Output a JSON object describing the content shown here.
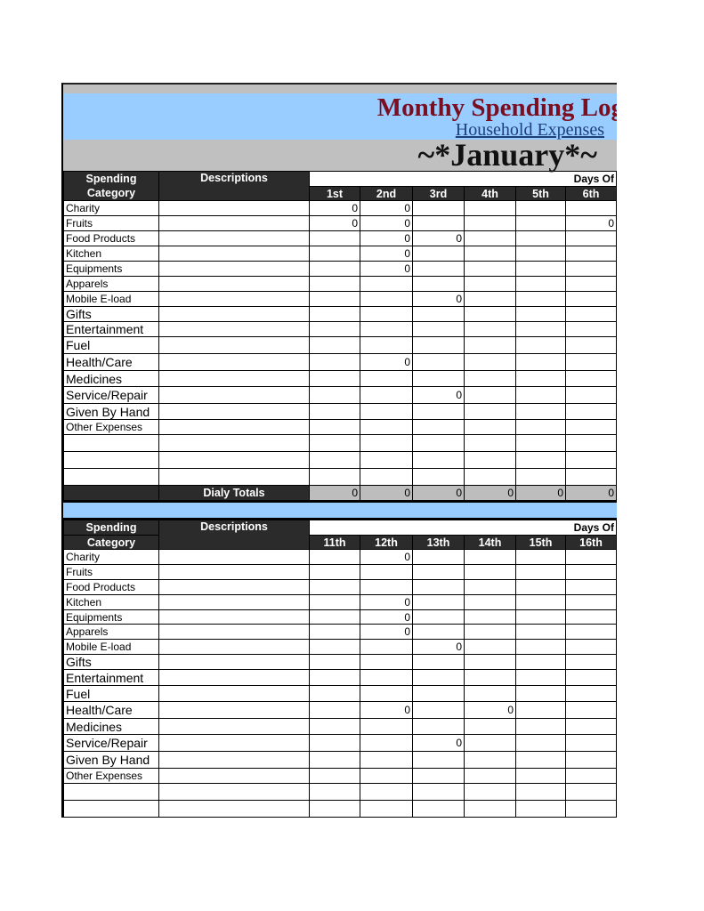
{
  "header": {
    "title": "Monthy Spending Log",
    "subtitle": "Household Expenses",
    "month": "~*January*~"
  },
  "columns": {
    "category": "Spending Category",
    "category_l1": "Spending",
    "category_l2": "Category",
    "descriptions": "Descriptions",
    "days_of": "Days Of"
  },
  "section1": {
    "days": [
      "1st",
      "2nd",
      "3rd",
      "4th",
      "5th",
      "6th"
    ],
    "rows": [
      {
        "category": "Charity",
        "values": [
          "0",
          "0",
          "",
          "",
          "",
          ""
        ]
      },
      {
        "category": "Fruits",
        "values": [
          "0",
          "0",
          "",
          "",
          "",
          "0"
        ]
      },
      {
        "category": "Food Products",
        "values": [
          "",
          "0",
          "0",
          "",
          "",
          ""
        ]
      },
      {
        "category": "Kitchen",
        "values": [
          "",
          "0",
          "",
          "",
          "",
          ""
        ]
      },
      {
        "category": "Equipments",
        "values": [
          "",
          "0",
          "",
          "",
          "",
          ""
        ]
      },
      {
        "category": "Apparels",
        "values": [
          "",
          "",
          "",
          "",
          "",
          ""
        ]
      },
      {
        "category": "Mobile E-load",
        "values": [
          "",
          "",
          "0",
          "",
          "",
          ""
        ]
      },
      {
        "category": "Gifts",
        "values": [
          "",
          "",
          "",
          "",
          "",
          ""
        ]
      },
      {
        "category": "Entertainment",
        "values": [
          "",
          "",
          "",
          "",
          "",
          ""
        ]
      },
      {
        "category": "Fuel",
        "values": [
          "",
          "",
          "",
          "",
          "",
          ""
        ]
      },
      {
        "category": "Health/Care",
        "values": [
          "",
          "0",
          "",
          "",
          "",
          ""
        ]
      },
      {
        "category": "Medicines",
        "values": [
          "",
          "",
          "",
          "",
          "",
          ""
        ]
      },
      {
        "category": "Service/Repair",
        "values": [
          "",
          "",
          "0",
          "",
          "",
          ""
        ]
      },
      {
        "category": "Given By Hand",
        "values": [
          "",
          "",
          "",
          "",
          "",
          ""
        ]
      },
      {
        "category": "Other Expenses",
        "values": [
          "",
          "",
          "",
          "",
          "",
          ""
        ]
      },
      {
        "category": "",
        "values": [
          "",
          "",
          "",
          "",
          "",
          ""
        ]
      },
      {
        "category": "",
        "values": [
          "",
          "",
          "",
          "",
          "",
          ""
        ]
      },
      {
        "category": "",
        "values": [
          "",
          "",
          "",
          "",
          "",
          ""
        ]
      }
    ],
    "totals_label": "Dialy Totals",
    "totals": [
      "0",
      "0",
      "0",
      "0",
      "0",
      "0"
    ]
  },
  "section2": {
    "days": [
      "11th",
      "12th",
      "13th",
      "14th",
      "15th",
      "16th"
    ],
    "rows": [
      {
        "category": "Charity",
        "values": [
          "",
          "0",
          "",
          "",
          "",
          ""
        ]
      },
      {
        "category": "Fruits",
        "values": [
          "",
          "",
          "",
          "",
          "",
          ""
        ]
      },
      {
        "category": "Food Products",
        "values": [
          "",
          "",
          "",
          "",
          "",
          ""
        ]
      },
      {
        "category": "Kitchen",
        "values": [
          "",
          "0",
          "",
          "",
          "",
          ""
        ]
      },
      {
        "category": "Equipments",
        "values": [
          "",
          "0",
          "",
          "",
          "",
          ""
        ]
      },
      {
        "category": "Apparels",
        "values": [
          "",
          "0",
          "",
          "",
          "",
          ""
        ]
      },
      {
        "category": "Mobile E-load",
        "values": [
          "",
          "",
          "0",
          "",
          "",
          ""
        ]
      },
      {
        "category": "Gifts",
        "values": [
          "",
          "",
          "",
          "",
          "",
          ""
        ]
      },
      {
        "category": "Entertainment",
        "values": [
          "",
          "",
          "",
          "",
          "",
          ""
        ]
      },
      {
        "category": "Fuel",
        "values": [
          "",
          "",
          "",
          "",
          "",
          ""
        ]
      },
      {
        "category": "Health/Care",
        "values": [
          "",
          "0",
          "",
          "0",
          "",
          ""
        ]
      },
      {
        "category": "Medicines",
        "values": [
          "",
          "",
          "",
          "",
          "",
          ""
        ]
      },
      {
        "category": "Service/Repair",
        "values": [
          "",
          "",
          "0",
          "",
          "",
          ""
        ]
      },
      {
        "category": "Given By Hand",
        "values": [
          "",
          "",
          "",
          "",
          "",
          ""
        ]
      },
      {
        "category": "Other Expenses",
        "values": [
          "",
          "",
          "",
          "",
          "",
          ""
        ]
      },
      {
        "category": "",
        "values": [
          "",
          "",
          "",
          "",
          "",
          ""
        ]
      },
      {
        "category": "",
        "values": [
          "",
          "",
          "",
          "",
          "",
          ""
        ]
      }
    ]
  }
}
